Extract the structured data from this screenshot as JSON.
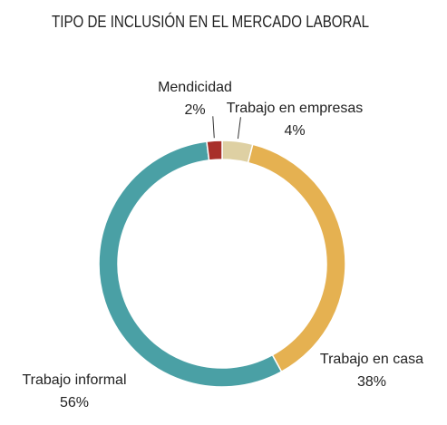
{
  "chart_data": {
    "type": "donut",
    "title": "TIPO DE INCLUSIÓN EN EL MERCADO LABORAL",
    "categories": [
      "Trabajo en empresas",
      "Trabajo en casa",
      "Trabajo informal",
      "Mendicidad"
    ],
    "values": [
      4,
      38,
      56,
      2
    ],
    "value_labels": [
      "4%",
      "38%",
      "56%",
      "2%"
    ],
    "colors": [
      "#ded0a3",
      "#e5b151",
      "#4aa0a5",
      "#a8302a"
    ]
  }
}
